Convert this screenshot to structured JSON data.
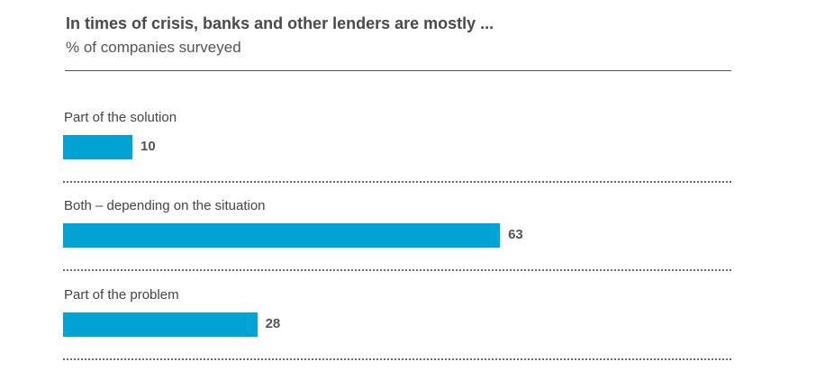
{
  "chart_data": {
    "type": "bar",
    "orientation": "horizontal",
    "title": "In times of crisis, banks and other lenders are mostly ...",
    "subtitle": "% of companies surveyed",
    "categories": [
      "Part of the solution",
      "Both – depending on the situation",
      "Part of the problem"
    ],
    "values": [
      10,
      63,
      28
    ],
    "value_labels": [
      "10",
      "63",
      "28"
    ],
    "bar_color": "#00a3d3",
    "xlim": [
      0,
      100
    ],
    "grid": false
  }
}
